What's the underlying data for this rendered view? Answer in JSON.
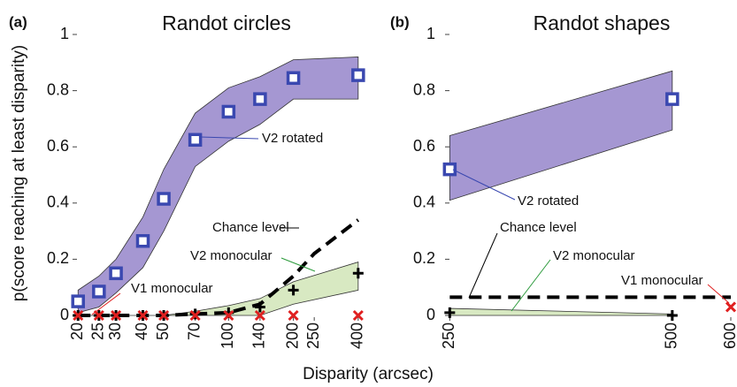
{
  "chart_data": [
    {
      "type": "line",
      "panel": "(a)",
      "title": "Randot circles",
      "ylabel": "p(score reaching at least disparity)",
      "xlabel": "Disparity (arcsec)",
      "xscale": "log",
      "x": [
        20,
        25,
        30,
        40,
        50,
        70,
        100,
        140,
        200,
        250,
        400
      ],
      "xlim": [
        18.5,
        420
      ],
      "xticks": [
        20,
        25,
        30,
        40,
        50,
        70,
        100,
        140,
        200,
        250,
        400
      ],
      "ylim": [
        0,
        1
      ],
      "yticks": [
        0,
        0.2,
        0.4,
        0.6,
        0.8,
        1
      ],
      "series": [
        {
          "name": "V2 rotated",
          "color": "#3a48b0",
          "marker": "square",
          "band_color": "#a597d2",
          "values": [
            0.05,
            0.085,
            0.15,
            0.265,
            0.415,
            0.625,
            0.725,
            0.77,
            0.845,
            null,
            0.855
          ],
          "upper": [
            0.09,
            0.14,
            0.2,
            0.35,
            0.52,
            0.72,
            0.81,
            0.85,
            0.91,
            null,
            0.92
          ],
          "lower": [
            0.01,
            0.03,
            0.08,
            0.17,
            0.3,
            0.53,
            0.62,
            0.68,
            0.77,
            null,
            0.77
          ]
        },
        {
          "name": "Chance level",
          "color": "#000000",
          "dash": true,
          "values": [
            0,
            0,
            0,
            0,
            0,
            0.005,
            0.01,
            0.04,
            0.14,
            0.22,
            0.34
          ]
        },
        {
          "name": "V2 monocular",
          "color": "#000000",
          "marker": "plus",
          "band_color": "#d8e9c2",
          "values": [
            0,
            0,
            0,
            0,
            0,
            0.005,
            0.01,
            0.03,
            0.09,
            null,
            0.15
          ],
          "upper": [
            0,
            0,
            0,
            0,
            0,
            0.015,
            0.035,
            0.06,
            0.12,
            null,
            0.19
          ],
          "lower": [
            0,
            0,
            0,
            0,
            0,
            0,
            0,
            0,
            0.04,
            null,
            0.09
          ]
        },
        {
          "name": "V1 monocular",
          "color": "#e02020",
          "marker": "x",
          "values": [
            0,
            0,
            0,
            0,
            0,
            0,
            0,
            0,
            0,
            null,
            0
          ]
        }
      ]
    },
    {
      "type": "line",
      "panel": "(b)",
      "title": "Randot shapes",
      "xscale": "log",
      "x": [
        250,
        500,
        600
      ],
      "xlim": [
        245,
        610
      ],
      "xticks": [
        250,
        500,
        600
      ],
      "ylim": [
        0,
        1
      ],
      "yticks": [
        0,
        0.2,
        0.4,
        0.6,
        0.8,
        1
      ],
      "series": [
        {
          "name": "V2 rotated",
          "color": "#3a48b0",
          "marker": "square",
          "band_color": "#a597d2",
          "values": [
            0.52,
            0.77,
            null
          ],
          "upper": [
            0.64,
            0.87,
            null
          ],
          "lower": [
            0.41,
            0.66,
            null
          ]
        },
        {
          "name": "Chance level",
          "color": "#000000",
          "dash": true,
          "values": [
            0.065,
            0.065,
            0.065
          ]
        },
        {
          "name": "V2 monocular",
          "color": "#000000",
          "marker": "plus",
          "band_color": "#d8e9c2",
          "values": [
            0.01,
            0,
            null
          ],
          "upper": [
            0.025,
            0.005,
            null
          ],
          "lower": [
            0,
            0,
            null
          ]
        },
        {
          "name": "V1 monocular",
          "color": "#e02020",
          "marker": "x",
          "values": [
            null,
            null,
            0.03
          ]
        }
      ]
    }
  ]
}
